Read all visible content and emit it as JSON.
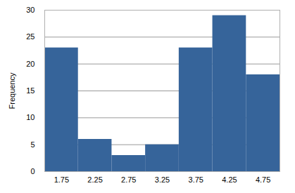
{
  "chart_data": {
    "type": "histogram",
    "ylabel": "Frequency",
    "bins": [
      1.5,
      2.0,
      2.5,
      3.0,
      3.5,
      4.0,
      4.5,
      5.0
    ],
    "values": [
      23,
      6,
      3,
      5,
      23,
      29,
      18
    ],
    "color": "#36649a",
    "xlim": [
      1.5,
      5.0
    ],
    "xticks": [
      1.75,
      2.25,
      2.75,
      3.25,
      3.75,
      4.25,
      4.75
    ],
    "ylim": [
      0,
      30
    ],
    "yticks": [
      0,
      5,
      10,
      15,
      20,
      25,
      30
    ],
    "grid": true
  }
}
